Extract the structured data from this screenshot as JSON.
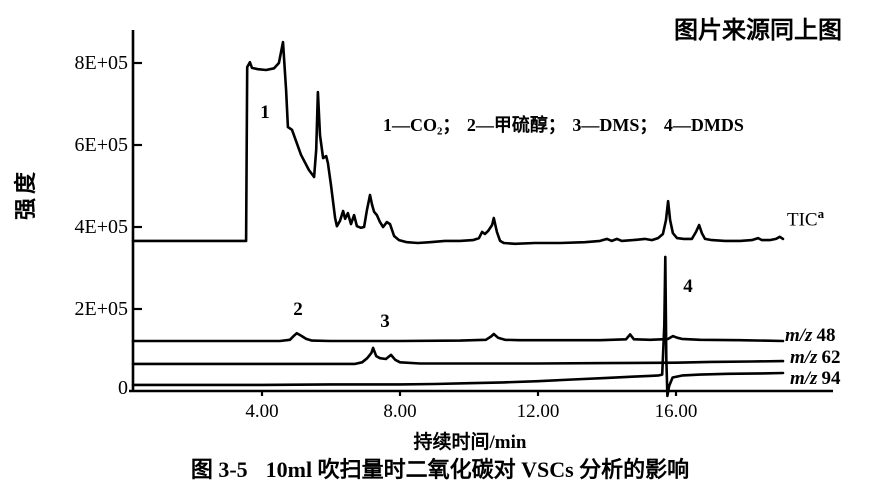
{
  "figure": {
    "source_note": "图片来源同上图",
    "caption_prefix": "图 3-5",
    "caption_text": "10ml 吹扫量时二氧化碳对 VSCs 分析的影响",
    "legend": "1—CO₂； 2—甲硫醇； 3—DMS； 4—DMDS"
  },
  "axes": {
    "y_label": "强度",
    "x_label": "持续时间/min",
    "y_ticks": [
      "8E+05",
      "6E+05",
      "4E+05",
      "2E+05",
      "0"
    ],
    "x_ticks": [
      "4.00",
      "8.00",
      "12.00",
      "16.00"
    ]
  },
  "peaks": [
    {
      "label": "1",
      "compound": "CO₂"
    },
    {
      "label": "2",
      "compound": "甲硫醇"
    },
    {
      "label": "3",
      "compound": "DMS"
    },
    {
      "label": "4",
      "compound": "DMDS"
    }
  ],
  "trace_labels": {
    "tic": {
      "text": "TIC",
      "superscript": "a"
    },
    "mz48": {
      "prefix": "m/z",
      "value": "48"
    },
    "mz62": {
      "prefix": "m/z",
      "value": "62"
    },
    "mz94": {
      "prefix": "m/z",
      "value": "94"
    }
  },
  "colors": {
    "ink": "#000000",
    "background": "#ffffff"
  },
  "chart_data": {
    "type": "line",
    "title": "图 3-5 10ml 吹扫量时二氧化碳对 VSCs 分析的影响",
    "xlabel": "持续时间/min",
    "ylabel": "强度",
    "intensity_unit": "1E+05",
    "xlim": [
      0,
      20.6
    ],
    "ylim": [
      0,
      8.8
    ],
    "x_tick_values": [
      4,
      8,
      12,
      16
    ],
    "y_tick_values": [
      0,
      2,
      4,
      6,
      8
    ],
    "grid": false,
    "legend_position": "inline-right",
    "series": [
      {
        "name": "TIC",
        "points": [
          [
            0.26,
            3.66
          ],
          [
            1.0,
            3.66
          ],
          [
            2.0,
            3.66
          ],
          [
            3.0,
            3.66
          ],
          [
            3.36,
            3.66
          ],
          [
            3.54,
            3.66
          ],
          [
            3.57,
            7.9
          ],
          [
            3.65,
            8.02
          ],
          [
            3.71,
            7.88
          ],
          [
            3.88,
            7.85
          ],
          [
            4.12,
            7.83
          ],
          [
            4.35,
            7.87
          ],
          [
            4.49,
            8.0
          ],
          [
            4.61,
            8.51
          ],
          [
            4.7,
            7.34
          ],
          [
            4.75,
            6.44
          ],
          [
            4.87,
            6.37
          ],
          [
            5.13,
            5.76
          ],
          [
            5.36,
            5.39
          ],
          [
            5.51,
            5.22
          ],
          [
            5.57,
            5.88
          ],
          [
            5.62,
            7.29
          ],
          [
            5.68,
            6.24
          ],
          [
            5.77,
            5.68
          ],
          [
            5.86,
            5.73
          ],
          [
            5.91,
            5.56
          ],
          [
            6.0,
            5.02
          ],
          [
            6.12,
            4.22
          ],
          [
            6.17,
            4.02
          ],
          [
            6.26,
            4.15
          ],
          [
            6.35,
            4.39
          ],
          [
            6.41,
            4.2
          ],
          [
            6.49,
            4.34
          ],
          [
            6.58,
            4.07
          ],
          [
            6.67,
            4.29
          ],
          [
            6.75,
            4.02
          ],
          [
            6.87,
            3.98
          ],
          [
            6.96,
            4.0
          ],
          [
            7.04,
            4.41
          ],
          [
            7.13,
            4.78
          ],
          [
            7.19,
            4.54
          ],
          [
            7.25,
            4.37
          ],
          [
            7.33,
            4.29
          ],
          [
            7.42,
            4.12
          ],
          [
            7.51,
            4.0
          ],
          [
            7.62,
            4.12
          ],
          [
            7.71,
            4.07
          ],
          [
            7.83,
            3.78
          ],
          [
            7.97,
            3.68
          ],
          [
            8.2,
            3.63
          ],
          [
            8.52,
            3.61
          ],
          [
            8.87,
            3.63
          ],
          [
            9.3,
            3.66
          ],
          [
            9.74,
            3.66
          ],
          [
            10.12,
            3.68
          ],
          [
            10.29,
            3.73
          ],
          [
            10.38,
            3.88
          ],
          [
            10.46,
            3.83
          ],
          [
            10.55,
            3.9
          ],
          [
            10.67,
            4.05
          ],
          [
            10.72,
            4.22
          ],
          [
            10.81,
            3.88
          ],
          [
            10.9,
            3.66
          ],
          [
            11.01,
            3.61
          ],
          [
            11.33,
            3.59
          ],
          [
            11.91,
            3.61
          ],
          [
            12.64,
            3.61
          ],
          [
            13.36,
            3.63
          ],
          [
            13.8,
            3.66
          ],
          [
            14.0,
            3.71
          ],
          [
            14.14,
            3.66
          ],
          [
            14.29,
            3.71
          ],
          [
            14.43,
            3.66
          ],
          [
            14.75,
            3.68
          ],
          [
            15.1,
            3.71
          ],
          [
            15.3,
            3.68
          ],
          [
            15.48,
            3.73
          ],
          [
            15.62,
            3.83
          ],
          [
            15.71,
            4.17
          ],
          [
            15.77,
            4.63
          ],
          [
            15.83,
            4.17
          ],
          [
            15.91,
            3.85
          ],
          [
            16.03,
            3.73
          ],
          [
            16.23,
            3.71
          ],
          [
            16.46,
            3.71
          ],
          [
            16.58,
            3.88
          ],
          [
            16.67,
            4.05
          ],
          [
            16.75,
            3.85
          ],
          [
            16.84,
            3.71
          ],
          [
            17.04,
            3.68
          ],
          [
            17.42,
            3.66
          ],
          [
            17.86,
            3.66
          ],
          [
            18.2,
            3.68
          ],
          [
            18.38,
            3.73
          ],
          [
            18.49,
            3.68
          ],
          [
            18.72,
            3.68
          ],
          [
            18.9,
            3.71
          ],
          [
            19.01,
            3.76
          ],
          [
            19.1,
            3.71
          ]
        ]
      },
      {
        "name": "m/z 48",
        "points": [
          [
            0.26,
            1.22
          ],
          [
            2.0,
            1.22
          ],
          [
            3.5,
            1.22
          ],
          [
            4.52,
            1.22
          ],
          [
            4.81,
            1.25
          ],
          [
            4.93,
            1.35
          ],
          [
            5.01,
            1.41
          ],
          [
            5.13,
            1.35
          ],
          [
            5.28,
            1.27
          ],
          [
            5.45,
            1.23
          ],
          [
            5.97,
            1.22
          ],
          [
            8.0,
            1.22
          ],
          [
            9.74,
            1.23
          ],
          [
            10.49,
            1.25
          ],
          [
            10.64,
            1.33
          ],
          [
            10.72,
            1.39
          ],
          [
            10.84,
            1.3
          ],
          [
            11.04,
            1.25
          ],
          [
            11.48,
            1.24
          ],
          [
            12.64,
            1.24
          ],
          [
            13.8,
            1.24
          ],
          [
            14.55,
            1.26
          ],
          [
            14.67,
            1.38
          ],
          [
            14.78,
            1.26
          ],
          [
            15.25,
            1.25
          ],
          [
            15.59,
            1.26
          ],
          [
            15.77,
            1.27
          ],
          [
            15.91,
            1.34
          ],
          [
            16.03,
            1.3
          ],
          [
            16.17,
            1.27
          ],
          [
            16.7,
            1.25
          ],
          [
            17.86,
            1.24
          ],
          [
            19.1,
            1.22
          ]
        ]
      },
      {
        "name": "m/z 62",
        "points": [
          [
            0.26,
            0.66
          ],
          [
            2.0,
            0.66
          ],
          [
            4.0,
            0.66
          ],
          [
            6.0,
            0.66
          ],
          [
            6.7,
            0.66
          ],
          [
            6.9,
            0.7
          ],
          [
            7.05,
            0.8
          ],
          [
            7.17,
            0.93
          ],
          [
            7.22,
            1.05
          ],
          [
            7.31,
            0.85
          ],
          [
            7.42,
            0.8
          ],
          [
            7.59,
            0.78
          ],
          [
            7.74,
            0.88
          ],
          [
            7.86,
            0.76
          ],
          [
            8.0,
            0.7
          ],
          [
            8.58,
            0.67
          ],
          [
            10.0,
            0.67
          ],
          [
            12.0,
            0.67
          ],
          [
            14.0,
            0.68
          ],
          [
            16.0,
            0.69
          ],
          [
            17.0,
            0.71
          ],
          [
            18.2,
            0.72
          ],
          [
            19.1,
            0.73
          ]
        ]
      },
      {
        "name": "m/z 94",
        "points": [
          [
            0.26,
            0.15
          ],
          [
            2.0,
            0.15
          ],
          [
            4.0,
            0.15
          ],
          [
            6.0,
            0.16
          ],
          [
            8.0,
            0.16
          ],
          [
            9.0,
            0.17
          ],
          [
            10.0,
            0.19
          ],
          [
            11.0,
            0.21
          ],
          [
            12.0,
            0.24
          ],
          [
            13.0,
            0.28
          ],
          [
            14.0,
            0.32
          ],
          [
            14.8,
            0.35
          ],
          [
            15.3,
            0.37
          ],
          [
            15.5,
            0.38
          ],
          [
            15.6,
            0.4
          ],
          [
            15.66,
            1.6
          ],
          [
            15.69,
            3.27
          ],
          [
            15.72,
            0.8
          ],
          [
            15.75,
            -0.12
          ],
          [
            15.8,
            0.12
          ],
          [
            15.9,
            0.33
          ],
          [
            16.2,
            0.38
          ],
          [
            16.7,
            0.4
          ],
          [
            17.5,
            0.42
          ],
          [
            18.5,
            0.43
          ],
          [
            19.1,
            0.44
          ]
        ]
      }
    ],
    "annotations": [
      {
        "label": "1",
        "x": 4.05,
        "series": "TIC",
        "meaning": "CO₂"
      },
      {
        "label": "2",
        "x": 5.01,
        "series": "m/z 48",
        "meaning": "甲硫醇"
      },
      {
        "label": "3",
        "x": 7.22,
        "series": "m/z 62",
        "meaning": "DMS"
      },
      {
        "label": "4",
        "x": 15.69,
        "series": "m/z 94",
        "meaning": "DMDS"
      }
    ]
  }
}
